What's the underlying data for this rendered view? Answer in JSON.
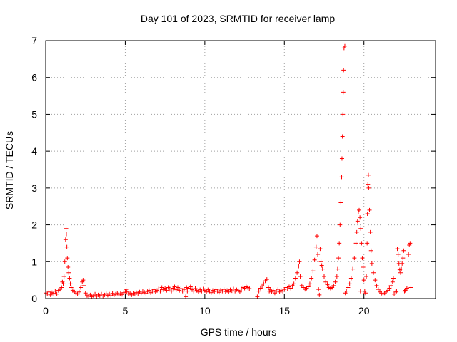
{
  "chart_data": {
    "type": "scatter",
    "title": "Day 101 of 2023, SRMTID for receiver lamp",
    "xlabel": "GPS time / hours",
    "ylabel": "SRMTID / TECUs",
    "xlim": [
      0,
      24.5
    ],
    "ylim": [
      0,
      7
    ],
    "xticks": [
      0,
      5,
      10,
      15,
      20
    ],
    "yticks": [
      0,
      1,
      2,
      3,
      4,
      5,
      6,
      7
    ],
    "grid": true,
    "marker": "+",
    "color": "#ff0000",
    "series": [
      {
        "name": "SRMTID",
        "points": [
          [
            0.0,
            0.15
          ],
          [
            0.1,
            0.12
          ],
          [
            0.2,
            0.18
          ],
          [
            0.3,
            0.1
          ],
          [
            0.4,
            0.16
          ],
          [
            0.5,
            0.14
          ],
          [
            0.6,
            0.2
          ],
          [
            0.7,
            0.12
          ],
          [
            0.8,
            0.22
          ],
          [
            0.9,
            0.25
          ],
          [
            1.0,
            0.3
          ],
          [
            1.05,
            0.45
          ],
          [
            1.1,
            0.4
          ],
          [
            1.15,
            0.6
          ],
          [
            1.2,
            1.0
          ],
          [
            1.25,
            1.6
          ],
          [
            1.28,
            1.9
          ],
          [
            1.3,
            1.75
          ],
          [
            1.33,
            1.4
          ],
          [
            1.36,
            1.1
          ],
          [
            1.4,
            0.85
          ],
          [
            1.45,
            0.7
          ],
          [
            1.5,
            0.55
          ],
          [
            1.55,
            0.4
          ],
          [
            1.6,
            0.3
          ],
          [
            1.7,
            0.22
          ],
          [
            1.8,
            0.18
          ],
          [
            1.9,
            0.15
          ],
          [
            2.0,
            0.12
          ],
          [
            2.1,
            0.18
          ],
          [
            2.2,
            0.3
          ],
          [
            2.3,
            0.45
          ],
          [
            2.35,
            0.5
          ],
          [
            2.4,
            0.35
          ],
          [
            2.5,
            0.15
          ],
          [
            2.6,
            0.08
          ],
          [
            2.7,
            0.06
          ],
          [
            2.8,
            0.1
          ],
          [
            2.9,
            0.05
          ],
          [
            3.0,
            0.08
          ],
          [
            3.1,
            0.12
          ],
          [
            3.2,
            0.06
          ],
          [
            3.3,
            0.1
          ],
          [
            3.4,
            0.08
          ],
          [
            3.5,
            0.12
          ],
          [
            3.6,
            0.07
          ],
          [
            3.7,
            0.1
          ],
          [
            3.8,
            0.13
          ],
          [
            3.9,
            0.09
          ],
          [
            4.0,
            0.12
          ],
          [
            4.1,
            0.08
          ],
          [
            4.2,
            0.14
          ],
          [
            4.3,
            0.1
          ],
          [
            4.4,
            0.12
          ],
          [
            4.5,
            0.15
          ],
          [
            4.6,
            0.1
          ],
          [
            4.7,
            0.13
          ],
          [
            4.8,
            0.11
          ],
          [
            4.9,
            0.16
          ],
          [
            5.0,
            0.2
          ],
          [
            5.05,
            0.25
          ],
          [
            5.1,
            0.18
          ],
          [
            5.2,
            0.12
          ],
          [
            5.3,
            0.15
          ],
          [
            5.4,
            0.1
          ],
          [
            5.5,
            0.14
          ],
          [
            5.6,
            0.12
          ],
          [
            5.7,
            0.16
          ],
          [
            5.8,
            0.13
          ],
          [
            5.9,
            0.18
          ],
          [
            6.0,
            0.15
          ],
          [
            6.1,
            0.2
          ],
          [
            6.2,
            0.17
          ],
          [
            6.3,
            0.14
          ],
          [
            6.4,
            0.19
          ],
          [
            6.5,
            0.22
          ],
          [
            6.6,
            0.16
          ],
          [
            6.7,
            0.2
          ],
          [
            6.8,
            0.24
          ],
          [
            6.9,
            0.18
          ],
          [
            7.0,
            0.22
          ],
          [
            7.1,
            0.26
          ],
          [
            7.2,
            0.2
          ],
          [
            7.3,
            0.3
          ],
          [
            7.4,
            0.24
          ],
          [
            7.5,
            0.28
          ],
          [
            7.6,
            0.22
          ],
          [
            7.7,
            0.3
          ],
          [
            7.8,
            0.26
          ],
          [
            7.9,
            0.2
          ],
          [
            8.0,
            0.28
          ],
          [
            8.1,
            0.32
          ],
          [
            8.2,
            0.24
          ],
          [
            8.3,
            0.3
          ],
          [
            8.4,
            0.22
          ],
          [
            8.5,
            0.27
          ],
          [
            8.6,
            0.2
          ],
          [
            8.7,
            0.25
          ],
          [
            8.8,
            0.05
          ],
          [
            8.85,
            0.3
          ],
          [
            8.9,
            0.2
          ],
          [
            9.0,
            0.28
          ],
          [
            9.1,
            0.32
          ],
          [
            9.2,
            0.24
          ],
          [
            9.3,
            0.2
          ],
          [
            9.4,
            0.27
          ],
          [
            9.5,
            0.22
          ],
          [
            9.6,
            0.18
          ],
          [
            9.7,
            0.24
          ],
          [
            9.8,
            0.2
          ],
          [
            9.9,
            0.26
          ],
          [
            10.0,
            0.22
          ],
          [
            10.1,
            0.18
          ],
          [
            10.2,
            0.24
          ],
          [
            10.3,
            0.2
          ],
          [
            10.4,
            0.16
          ],
          [
            10.5,
            0.22
          ],
          [
            10.6,
            0.19
          ],
          [
            10.7,
            0.24
          ],
          [
            10.8,
            0.2
          ],
          [
            10.9,
            0.17
          ],
          [
            11.0,
            0.23
          ],
          [
            11.1,
            0.2
          ],
          [
            11.2,
            0.25
          ],
          [
            11.3,
            0.19
          ],
          [
            11.4,
            0.22
          ],
          [
            11.5,
            0.18
          ],
          [
            11.6,
            0.24
          ],
          [
            11.7,
            0.21
          ],
          [
            11.8,
            0.26
          ],
          [
            11.9,
            0.2
          ],
          [
            12.0,
            0.24
          ],
          [
            12.1,
            0.22
          ],
          [
            12.2,
            0.18
          ],
          [
            12.3,
            0.26
          ],
          [
            12.4,
            0.3
          ],
          [
            12.5,
            0.28
          ],
          [
            12.6,
            0.32
          ],
          [
            12.7,
            0.3
          ],
          [
            12.8,
            0.27
          ],
          [
            13.3,
            0.05
          ],
          [
            13.4,
            0.2
          ],
          [
            13.5,
            0.28
          ],
          [
            13.6,
            0.34
          ],
          [
            13.7,
            0.4
          ],
          [
            13.8,
            0.48
          ],
          [
            13.9,
            0.52
          ],
          [
            14.0,
            0.3
          ],
          [
            14.05,
            0.2
          ],
          [
            14.1,
            0.25
          ],
          [
            14.2,
            0.18
          ],
          [
            14.3,
            0.22
          ],
          [
            14.4,
            0.15
          ],
          [
            14.5,
            0.2
          ],
          [
            14.6,
            0.25
          ],
          [
            14.7,
            0.18
          ],
          [
            14.8,
            0.22
          ],
          [
            14.9,
            0.2
          ],
          [
            15.0,
            0.25
          ],
          [
            15.1,
            0.3
          ],
          [
            15.2,
            0.26
          ],
          [
            15.3,
            0.32
          ],
          [
            15.4,
            0.28
          ],
          [
            15.5,
            0.35
          ],
          [
            15.6,
            0.4
          ],
          [
            15.7,
            0.55
          ],
          [
            15.8,
            0.7
          ],
          [
            15.9,
            0.88
          ],
          [
            15.95,
            1.0
          ],
          [
            16.0,
            0.6
          ],
          [
            16.1,
            0.35
          ],
          [
            16.2,
            0.3
          ],
          [
            16.3,
            0.25
          ],
          [
            16.4,
            0.28
          ],
          [
            16.5,
            0.32
          ],
          [
            16.6,
            0.4
          ],
          [
            16.7,
            0.55
          ],
          [
            16.8,
            0.75
          ],
          [
            16.9,
            1.05
          ],
          [
            17.0,
            1.4
          ],
          [
            17.05,
            1.7
          ],
          [
            17.1,
            1.2
          ],
          [
            17.15,
            0.25
          ],
          [
            17.2,
            0.1
          ],
          [
            17.25,
            1.35
          ],
          [
            17.3,
            1.0
          ],
          [
            17.35,
            0.9
          ],
          [
            17.4,
            0.8
          ],
          [
            17.5,
            0.6
          ],
          [
            17.6,
            0.45
          ],
          [
            17.7,
            0.38
          ],
          [
            17.8,
            0.3
          ],
          [
            17.9,
            0.28
          ],
          [
            18.0,
            0.3
          ],
          [
            18.1,
            0.35
          ],
          [
            18.2,
            0.45
          ],
          [
            18.3,
            0.6
          ],
          [
            18.35,
            0.8
          ],
          [
            18.4,
            1.1
          ],
          [
            18.45,
            1.5
          ],
          [
            18.5,
            2.0
          ],
          [
            18.55,
            2.6
          ],
          [
            18.6,
            3.3
          ],
          [
            18.62,
            3.8
          ],
          [
            18.65,
            4.4
          ],
          [
            18.68,
            5.0
          ],
          [
            18.7,
            5.6
          ],
          [
            18.72,
            6.2
          ],
          [
            18.75,
            6.8
          ],
          [
            18.8,
            6.85
          ],
          [
            18.83,
            0.15
          ],
          [
            18.9,
            0.2
          ],
          [
            19.0,
            0.3
          ],
          [
            19.1,
            0.4
          ],
          [
            19.2,
            0.55
          ],
          [
            19.3,
            0.8
          ],
          [
            19.4,
            1.1
          ],
          [
            19.5,
            1.5
          ],
          [
            19.55,
            1.8
          ],
          [
            19.6,
            2.1
          ],
          [
            19.65,
            2.35
          ],
          [
            19.7,
            2.4
          ],
          [
            19.75,
            2.2
          ],
          [
            19.78,
            0.2
          ],
          [
            19.8,
            1.9
          ],
          [
            19.85,
            1.5
          ],
          [
            19.9,
            1.1
          ],
          [
            19.95,
            0.85
          ],
          [
            20.0,
            0.5
          ],
          [
            20.05,
            0.2
          ],
          [
            20.1,
            0.15
          ],
          [
            20.15,
            0.6
          ],
          [
            20.2,
            1.5
          ],
          [
            20.22,
            2.3
          ],
          [
            20.25,
            3.1
          ],
          [
            20.28,
            3.35
          ],
          [
            20.3,
            3.0
          ],
          [
            20.35,
            2.4
          ],
          [
            20.4,
            1.8
          ],
          [
            20.45,
            1.3
          ],
          [
            20.5,
            0.95
          ],
          [
            20.6,
            0.7
          ],
          [
            20.7,
            0.5
          ],
          [
            20.8,
            0.35
          ],
          [
            20.9,
            0.25
          ],
          [
            21.0,
            0.18
          ],
          [
            21.1,
            0.14
          ],
          [
            21.2,
            0.12
          ],
          [
            21.3,
            0.15
          ],
          [
            21.4,
            0.18
          ],
          [
            21.5,
            0.22
          ],
          [
            21.6,
            0.28
          ],
          [
            21.7,
            0.35
          ],
          [
            21.8,
            0.45
          ],
          [
            21.85,
            0.55
          ],
          [
            21.9,
            0.12
          ],
          [
            22.0,
            0.18
          ],
          [
            22.05,
            0.2
          ],
          [
            22.1,
            1.35
          ],
          [
            22.15,
            1.2
          ],
          [
            22.2,
            0.95
          ],
          [
            22.25,
            0.78
          ],
          [
            22.3,
            0.7
          ],
          [
            22.35,
            0.8
          ],
          [
            22.4,
            0.95
          ],
          [
            22.45,
            1.1
          ],
          [
            22.5,
            1.3
          ],
          [
            22.55,
            0.2
          ],
          [
            22.6,
            0.22
          ],
          [
            22.7,
            0.28
          ],
          [
            22.8,
            1.2
          ],
          [
            22.85,
            1.45
          ],
          [
            22.9,
            1.5
          ],
          [
            22.95,
            0.3
          ]
        ]
      }
    ]
  }
}
